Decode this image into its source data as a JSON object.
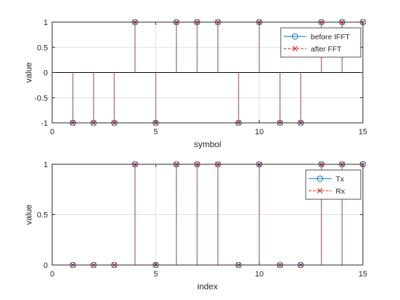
{
  "chart_data": [
    {
      "type": "stem",
      "xlabel": "symbol",
      "ylabel": "value",
      "xlim": [
        0,
        15
      ],
      "ylim": [
        -1,
        1
      ],
      "xticks": [
        0,
        5,
        10,
        15
      ],
      "xtick_labels": [
        "0",
        "5",
        "10",
        "15"
      ],
      "yticks": [
        -1,
        -0.5,
        0,
        0.5,
        1
      ],
      "ytick_labels": [
        "-1",
        "-0.5",
        "0",
        "0.5",
        "1"
      ],
      "grid": true,
      "legend_position": "top-right",
      "x": [
        1,
        2,
        3,
        4,
        5,
        6,
        7,
        8,
        9,
        10,
        11,
        12,
        13,
        14,
        15
      ],
      "series": [
        {
          "name": "before IFFT",
          "marker": "o",
          "line": "solid",
          "color": "#0072bd",
          "values": [
            -1,
            -1,
            -1,
            1,
            -1,
            1,
            1,
            1,
            -1,
            1,
            -1,
            -1,
            1,
            1,
            1
          ]
        },
        {
          "name": "after FFT",
          "marker": "x",
          "line": "dashed",
          "color": "#d62728",
          "values": [
            -1,
            -1,
            -1,
            1,
            -1,
            1,
            1,
            1,
            -1,
            1,
            -1,
            -1,
            1,
            1,
            1
          ]
        }
      ]
    },
    {
      "type": "stem",
      "xlabel": "index",
      "ylabel": "value",
      "xlim": [
        0,
        15
      ],
      "ylim": [
        0,
        1
      ],
      "xticks": [
        0,
        5,
        10,
        15
      ],
      "xtick_labels": [
        "0",
        "5",
        "10",
        "15"
      ],
      "yticks": [
        0,
        0.5,
        1
      ],
      "ytick_labels": [
        "0",
        "0.5",
        "1"
      ],
      "grid": true,
      "legend_position": "top-right",
      "x": [
        1,
        2,
        3,
        4,
        5,
        6,
        7,
        8,
        9,
        10,
        11,
        12,
        13,
        14,
        15
      ],
      "series": [
        {
          "name": "Tx",
          "marker": "o",
          "line": "solid",
          "color": "#0072bd",
          "values": [
            0,
            0,
            0,
            1,
            0,
            1,
            1,
            1,
            0,
            1,
            0,
            0,
            1,
            1,
            1
          ]
        },
        {
          "name": "Rx",
          "marker": "x",
          "line": "dashed",
          "color": "#d62728",
          "values": [
            0,
            0,
            0,
            1,
            0,
            1,
            1,
            1,
            0,
            1,
            0,
            0,
            1,
            1,
            1
          ]
        }
      ]
    }
  ]
}
